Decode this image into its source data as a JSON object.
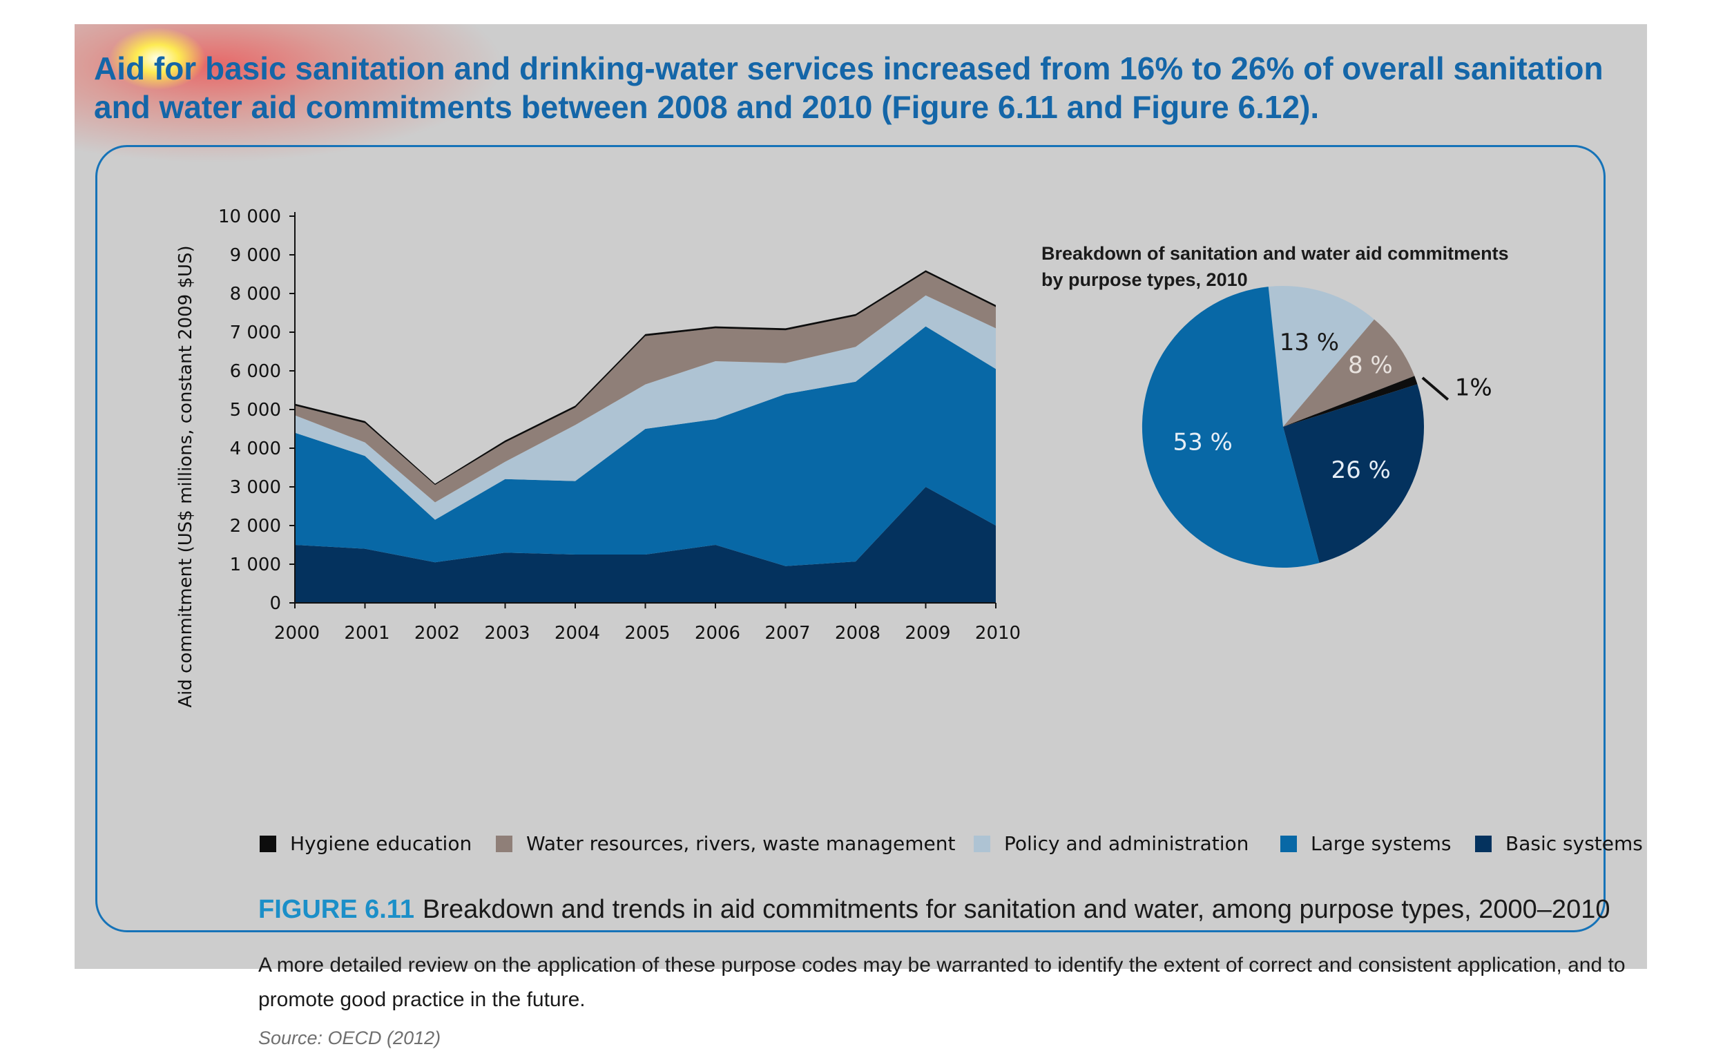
{
  "headline": "Aid for basic sanitation and drinking-water services increased from 16% to 26% of overall sanitation and water aid commitments between 2008 and 2010 (Figure 6.11 and Figure 6.12).",
  "colors": {
    "panel": "#cdcdcd",
    "hygiene_education": "#0d0d0d",
    "water_resources": "#8f7f78",
    "policy_admin": "#aec3d3",
    "large_systems": "#0868a6",
    "basic_systems": "#04325e",
    "caption_accent": "#1b8fc8",
    "frame": "#1673b8"
  },
  "chart_data": [
    {
      "type": "area",
      "stacked": true,
      "ylabel": "Aid commitment (US$ millions, constant 2009 $US)",
      "xlabel": "",
      "ylim": [
        0,
        10000
      ],
      "yticks": [
        "0",
        "1 000",
        "2 000",
        "3 000",
        "4 000",
        "5 000",
        "6 000",
        "7 000",
        "8 000",
        "9 000",
        "10 000"
      ],
      "x": [
        "2000",
        "2001",
        "2002",
        "2003",
        "2004",
        "2005",
        "2006",
        "2007",
        "2008",
        "2009",
        "2010"
      ],
      "series": [
        {
          "name": "Basic systems",
          "color": "#04325e",
          "values": [
            1500,
            1400,
            1050,
            1300,
            1250,
            1250,
            1500,
            950,
            1070,
            3000,
            2000
          ]
        },
        {
          "name": "Large systems",
          "color": "#0868a6",
          "values": [
            2900,
            2400,
            1100,
            1900,
            1900,
            3250,
            3250,
            4450,
            4650,
            4150,
            4050
          ]
        },
        {
          "name": "Policy and administration",
          "color": "#aec3d3",
          "values": [
            450,
            350,
            450,
            450,
            1450,
            1150,
            1500,
            800,
            900,
            800,
            1050
          ]
        },
        {
          "name": "Water resources, rivers, waste management",
          "color": "#8f7f78",
          "values": [
            250,
            500,
            450,
            500,
            450,
            1250,
            850,
            850,
            800,
            600,
            550
          ]
        },
        {
          "name": "Hygiene education",
          "color": "#0d0d0d",
          "values": [
            50,
            50,
            30,
            50,
            50,
            50,
            50,
            50,
            50,
            50,
            50
          ]
        }
      ],
      "legend": "bottom",
      "grid": false
    },
    {
      "type": "pie",
      "title_line1": "Breakdown of sanitation and water aid commitments",
      "title_line2": "by purpose types, 2010",
      "slices": [
        {
          "name": "Policy and administration",
          "value": 13,
          "label": "13 %",
          "color": "#aec3d3",
          "label_color": "#1a1a1a"
        },
        {
          "name": "Water resources, rivers, waste management",
          "value": 8,
          "label": "8 %",
          "color": "#8f7f78",
          "label_color": "#e8e2de"
        },
        {
          "name": "Hygiene education",
          "value": 1,
          "label": "1%",
          "color": "#0d0d0d",
          "label_color": "#111111"
        },
        {
          "name": "Basic systems",
          "value": 26,
          "label": "26 %",
          "color": "#04325e",
          "label_color": "#e6eef6"
        },
        {
          "name": "Large systems",
          "value": 53,
          "label": "53 %",
          "color": "#0868a6",
          "label_color": "#e6eef6"
        }
      ]
    }
  ],
  "legend_items": [
    {
      "label": "Hygiene education",
      "color": "#0d0d0d"
    },
    {
      "label": "Water resources, rivers, waste management",
      "color": "#8f7f78"
    },
    {
      "label": "Policy and administration",
      "color": "#aec3d3"
    },
    {
      "label": "Large systems",
      "color": "#0868a6"
    },
    {
      "label": "Basic systems",
      "color": "#04325e"
    }
  ],
  "figure": {
    "number": "FIGURE 6.11",
    "caption": "Breakdown and trends in aid commitments for sanitation and water, among purpose types, 2000–2010",
    "note": "A more detailed review on the application of these purpose codes may be warranted to identify the extent of correct and consistent application, and to promote good practice in the future.",
    "source": "Source: OECD (2012)"
  }
}
